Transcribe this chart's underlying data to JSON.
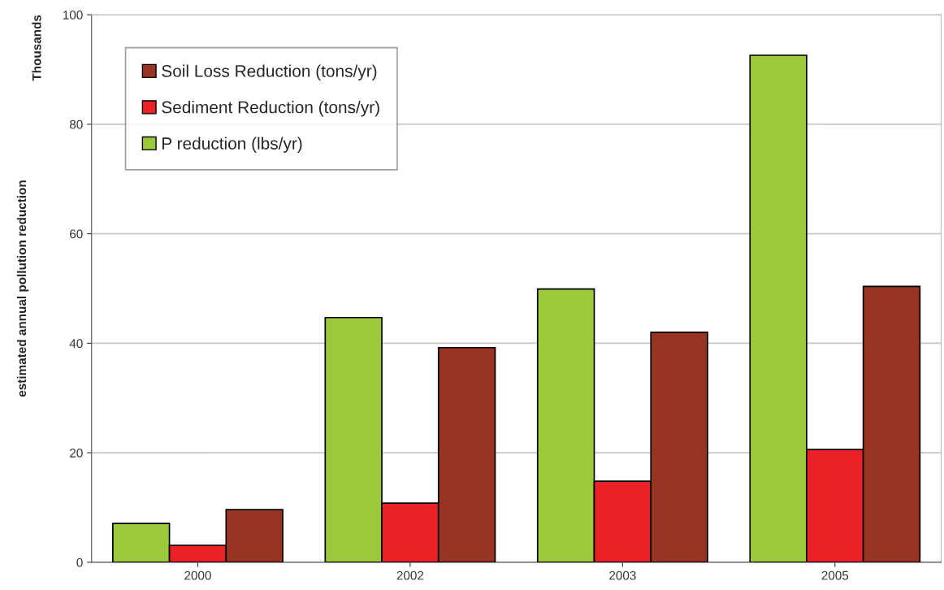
{
  "chart_data": {
    "type": "bar",
    "ylabel": "estimated annual pollution reduction",
    "annotations": [
      "Thousands"
    ],
    "categories": [
      "2000",
      "2002",
      "2003",
      "2005"
    ],
    "series": [
      {
        "name": "P reduction (lbs/yr)",
        "color": "#9bc93b",
        "values": [
          7.1,
          44.7,
          49.9,
          92.6
        ]
      },
      {
        "name": "Sediment Reduction (tons/yr)",
        "color": "#ea2227",
        "values": [
          3.1,
          10.8,
          14.8,
          20.6
        ]
      },
      {
        "name": "Soil Loss Reduction (tons/yr)",
        "color": "#983422",
        "values": [
          9.6,
          39.2,
          42.0,
          50.4
        ]
      }
    ],
    "ylim": [
      0,
      100
    ],
    "yticks": [
      0,
      20,
      40,
      60,
      80,
      100
    ],
    "grid": "y",
    "legend": "top left"
  }
}
